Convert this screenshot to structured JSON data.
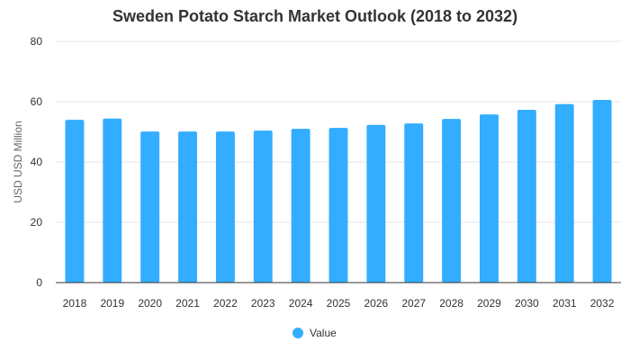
{
  "chart_data": {
    "type": "bar",
    "title": "Sweden Potato Starch Market Outlook (2018 to 2032)",
    "ylabel": "USD USD Million",
    "xlabel": "",
    "ylim": [
      0,
      80
    ],
    "yticks": [
      0,
      20,
      40,
      60,
      80
    ],
    "grid": true,
    "legend_position": "bottom",
    "categories": [
      "2018",
      "2019",
      "2020",
      "2021",
      "2022",
      "2023",
      "2024",
      "2025",
      "2026",
      "2027",
      "2028",
      "2029",
      "2030",
      "2031",
      "2032"
    ],
    "series": [
      {
        "name": "Value",
        "color": "#33adff",
        "values": [
          54.0,
          54.4,
          50.1,
          50.1,
          50.1,
          50.4,
          51.0,
          51.3,
          52.3,
          52.8,
          54.3,
          55.8,
          57.3,
          59.2,
          60.6
        ]
      }
    ]
  }
}
